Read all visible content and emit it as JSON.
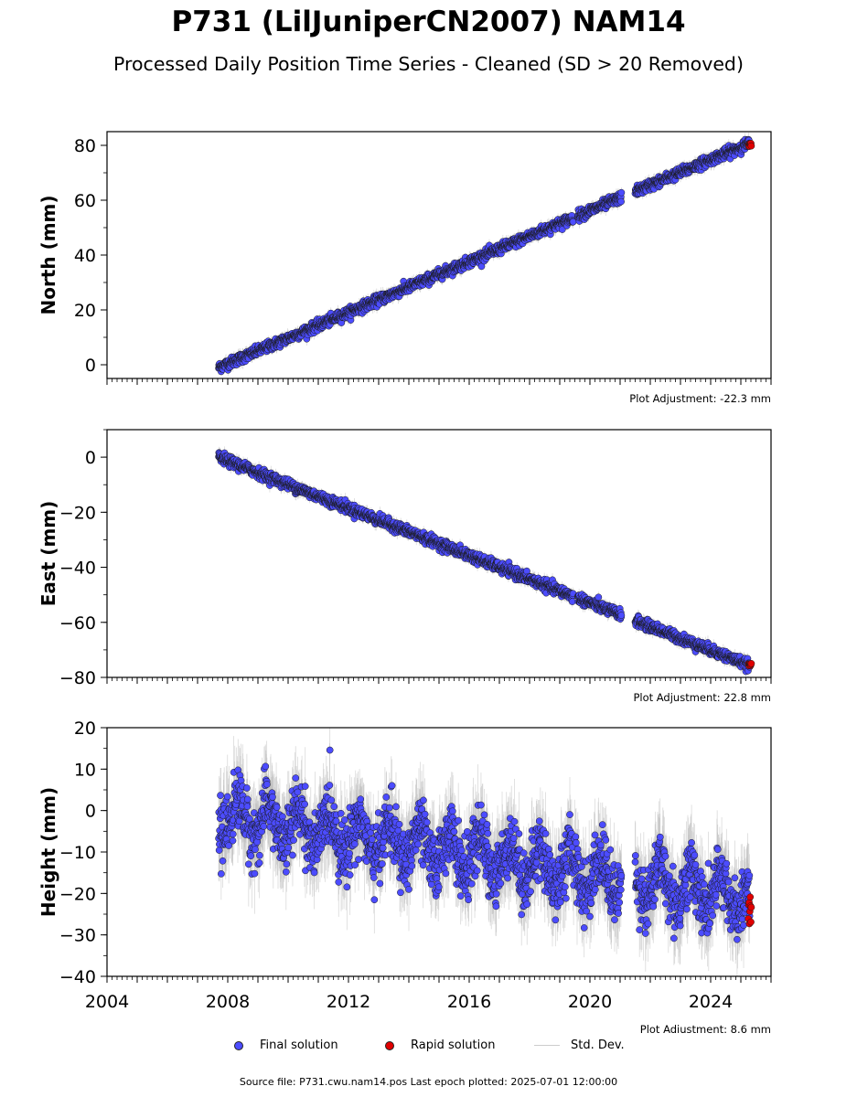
{
  "header": {
    "title": "P731 (LilJuniperCN2007) NAM14",
    "subtitle": "Processed Daily Position Time Series - Cleaned (SD > 20 Removed)"
  },
  "legend": {
    "final": "Final solution",
    "rapid": "Rapid solution",
    "std": "Std. Dev."
  },
  "source_line": "Source file: P731.cwu.nam14.pos  Last epoch plotted: 2025-07-01 12:00:00",
  "colors": {
    "final": "#4c4cff",
    "rapid": "#e00000",
    "std": "#bbbbbb",
    "marker_edge": "#1a1a1a"
  },
  "chart_data": [
    {
      "type": "scatter",
      "ylabel": "North (mm)",
      "xlim": [
        2004,
        2026
      ],
      "ylim": [
        -5,
        85
      ],
      "yticks": [
        0,
        20,
        40,
        60,
        80
      ],
      "xticks": [
        2004,
        2008,
        2012,
        2016,
        2020,
        2024
      ],
      "show_xtick_labels": false,
      "adjustment": "Plot Adjustment: -22.3 mm",
      "start": 2007.7,
      "end": 2025.3,
      "start_value": -1,
      "trend_mm_per_yr": 4.65,
      "noise_sd": 0.9,
      "gaps": [
        [
          2019.45,
          2019.6
        ],
        [
          2021.05,
          2021.5
        ]
      ],
      "rapid": {
        "start": 2025.25,
        "end": 2025.35,
        "value": 80
      }
    },
    {
      "type": "scatter",
      "ylabel": "East (mm)",
      "xlim": [
        2004,
        2026
      ],
      "ylim": [
        -80,
        10
      ],
      "yticks": [
        -80,
        -60,
        -40,
        -20,
        0
      ],
      "xticks": [
        2004,
        2008,
        2012,
        2016,
        2020,
        2024
      ],
      "show_xtick_labels": false,
      "adjustment": "Plot Adjustment: 22.8 mm",
      "start": 2007.7,
      "end": 2025.3,
      "start_value": 0,
      "trend_mm_per_yr": -4.3,
      "noise_sd": 0.9,
      "gaps": [
        [
          2019.45,
          2019.6
        ],
        [
          2021.05,
          2021.5
        ]
      ],
      "rapid": {
        "start": 2025.25,
        "end": 2025.35,
        "value": -75
      }
    },
    {
      "type": "scatter",
      "ylabel": "Height (mm)",
      "xlim": [
        2004,
        2026
      ],
      "ylim": [
        -40,
        20
      ],
      "yticks": [
        -40,
        -30,
        -20,
        -10,
        0,
        10,
        20
      ],
      "xticks": [
        2004,
        2008,
        2012,
        2016,
        2020,
        2024
      ],
      "show_xtick_labels": true,
      "adjustment": "Plot Adjustment: 8.6 mm",
      "start": 2007.7,
      "end": 2025.3,
      "start_value": -1,
      "trend_mm_per_yr": -1.15,
      "seasonal_amp": 4.5,
      "noise_sd": 3.6,
      "gaps": [
        [
          2021.05,
          2021.5
        ]
      ],
      "rapid": {
        "start": 2025.25,
        "end": 2025.35,
        "value": -25
      }
    }
  ]
}
